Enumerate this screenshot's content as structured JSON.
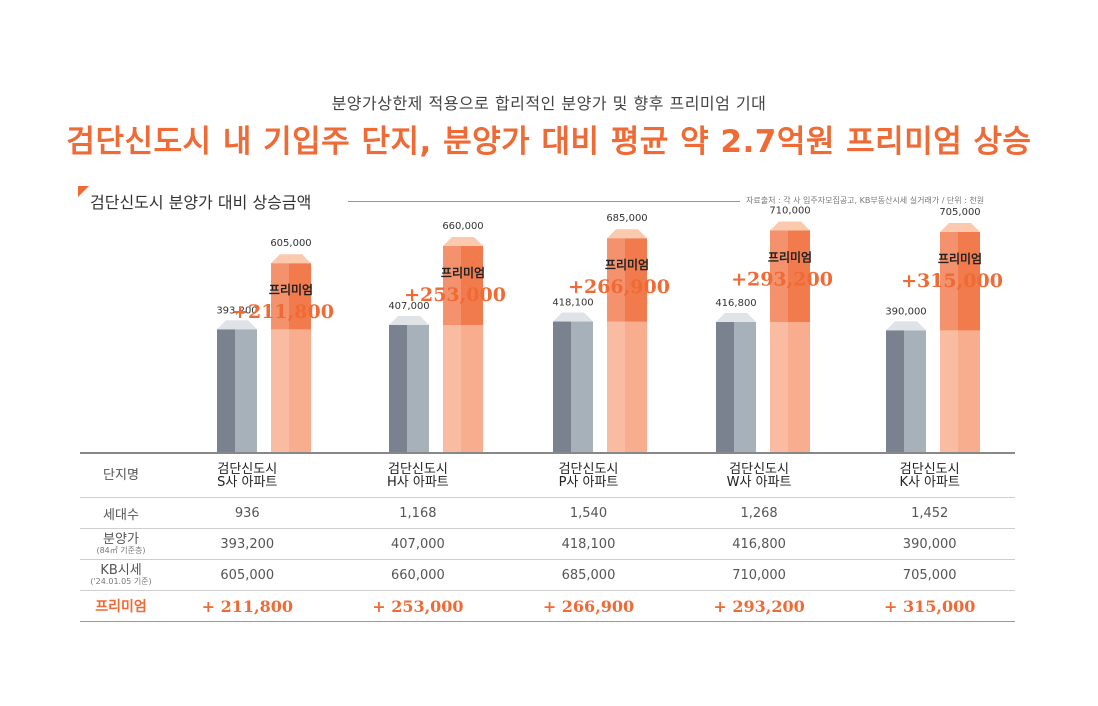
{
  "header": {
    "subtitle": "분양가상한제 적용으로 합리적인 분양가 및 향후 프리미엄 기대",
    "title": "검단신도시 내 기입주 단지, 분양가 대비 평균 약 2.7억원 프리미엄 상승"
  },
  "section": {
    "title": "검단신도시 분양가 대비 상승금액",
    "source": "자료출처 : 각 사 입주자모집공고, KB부동산시세 실거래가 / 단위 : 천원"
  },
  "colors": {
    "accent": "#ef6a35",
    "sale_bar": "#a7b1ba",
    "sale_bar_side": "#7a8290",
    "kb_bar": "#f8ae8e",
    "premium_band": "#ef6a35"
  },
  "chart_data": {
    "type": "bar",
    "categories": [
      "검단신도시 S사 아파트",
      "검단신도시 H사 아파트",
      "검단신도시 P사 아파트",
      "검단신도시 W사 아파트",
      "검단신도시 K사 아파트"
    ],
    "series": [
      {
        "values": [
          393200,
          407000,
          418100,
          416800,
          390000
        ]
      },
      {
        "values": [
          605000,
          660000,
          685000,
          710000,
          705000
        ]
      }
    ],
    "premium_label": "프리미엄",
    "premium_values": [
      "+211,800",
      "+253,000",
      "+266,900",
      "+293,200",
      "+315,000"
    ],
    "value_labels_sale": [
      "393,200",
      "407,000",
      "418,100",
      "416,800",
      "390,000"
    ],
    "value_labels_kb": [
      "605,000",
      "660,000",
      "685,000",
      "710,000",
      "705,000"
    ],
    "ylim": [
      0,
      720000
    ]
  },
  "table": {
    "headers": {
      "name": "단지명",
      "households": "세대수",
      "price": "분양가",
      "price_note": "(84㎡ 기준층)",
      "kb": "KB시세",
      "kb_note": "('24.01.05 기준)",
      "premium": "프리미엄"
    },
    "columns": [
      {
        "name1": "검단신도시",
        "name2": "S사 아파트",
        "households": "936",
        "price": "393,200",
        "kb": "605,000",
        "premium": "+ 211,800"
      },
      {
        "name1": "검단신도시",
        "name2": "H사 아파트",
        "households": "1,168",
        "price": "407,000",
        "kb": "660,000",
        "premium": "+ 253,000"
      },
      {
        "name1": "검단신도시",
        "name2": "P사 아파트",
        "households": "1,540",
        "price": "418,100",
        "kb": "685,000",
        "premium": "+ 266,900"
      },
      {
        "name1": "검단신도시",
        "name2": "W사 아파트",
        "households": "1,268",
        "price": "416,800",
        "kb": "710,000",
        "premium": "+ 293,200"
      },
      {
        "name1": "검단신도시",
        "name2": "K사 아파트",
        "households": "1,452",
        "price": "390,000",
        "kb": "705,000",
        "premium": "+ 315,000"
      }
    ]
  }
}
